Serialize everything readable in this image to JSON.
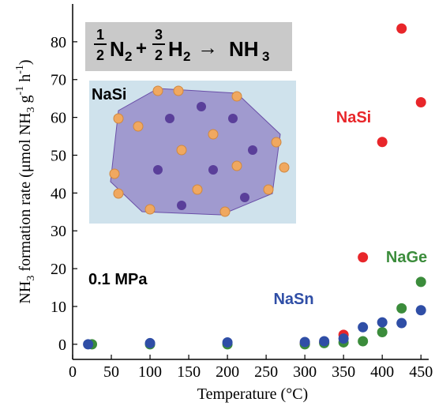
{
  "chart_data": {
    "type": "scatter",
    "y_label_parts": [
      "NH",
      "3",
      " formation rate (μmol NH",
      "3",
      " g",
      "-1",
      " h",
      "-1",
      ")"
    ],
    "x_label": "Temperature (°C)",
    "equation_parts": [
      "1",
      "2",
      "N",
      "2",
      "+",
      "3",
      "2",
      "H",
      "2",
      "→",
      "NH",
      "3"
    ],
    "inset_label": "NaSi",
    "condition": "0.1 MPa",
    "xlim": [
      0,
      460
    ],
    "ylim": [
      -4,
      90
    ],
    "xticks": [
      0,
      50,
      100,
      150,
      200,
      250,
      300,
      350,
      400,
      450
    ],
    "yticks": [
      0,
      10,
      20,
      30,
      40,
      50,
      60,
      70,
      80
    ],
    "grid": false,
    "series": [
      {
        "name": "NaSi",
        "color": "#e8262a",
        "x": [
          300,
          325,
          350,
          375,
          400,
          425,
          450
        ],
        "values": [
          0.2,
          0.5,
          2.5,
          23,
          53.5,
          83.5,
          64
        ]
      },
      {
        "name": "NaGe",
        "color": "#3b8c3b",
        "x": [
          25,
          100,
          200,
          300,
          325,
          350,
          375,
          400,
          425,
          450
        ],
        "values": [
          0,
          0,
          0,
          0,
          0.3,
          0.5,
          0.8,
          3.2,
          9.5,
          16.5
        ]
      },
      {
        "name": "NaSn",
        "color": "#2f4ea6",
        "x": [
          20,
          100,
          200,
          300,
          325,
          350,
          375,
          400,
          425,
          450
        ],
        "values": [
          0,
          0.3,
          0.5,
          0.6,
          0.8,
          1.5,
          4.5,
          5.8,
          5.6,
          9
        ]
      }
    ]
  }
}
